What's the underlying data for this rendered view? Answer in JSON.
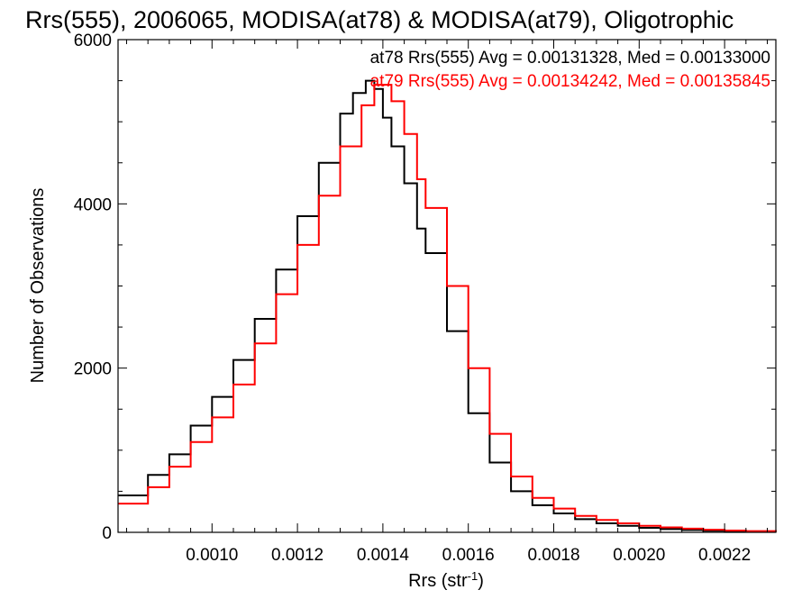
{
  "chart_data": {
    "type": "step",
    "title": "Rrs(555), 2006065, MODISA(at78) & MODISA(at79), Oligotrophic",
    "xlabel": "Rrs (str",
    "xlabel_sup": "-1",
    "xlabel_end": ")",
    "ylabel": "Number of Observations",
    "xlim": [
      0.00078,
      0.00232
    ],
    "ylim": [
      0,
      6000
    ],
    "xticks": [
      "0.0010",
      "0.0012",
      "0.0014",
      "0.0016",
      "0.0018",
      "0.0020",
      "0.0022"
    ],
    "xtick_values": [
      0.001,
      0.0012,
      0.0014,
      0.0016,
      0.0018,
      0.002,
      0.0022
    ],
    "yticks": [
      "0",
      "2000",
      "4000",
      "6000"
    ],
    "ytick_values": [
      0,
      2000,
      4000,
      6000
    ],
    "grid": false,
    "stats": [
      {
        "text": "at78 Rrs(555) Avg = 0.00131328, Med = 0.00133000",
        "color": "#000000"
      },
      {
        "text": "at79 Rrs(555) Avg = 0.00134242, Med = 0.00135845",
        "color": "#ff0000"
      }
    ],
    "series": [
      {
        "color": "#000000",
        "x": [
          0.00078,
          0.00085,
          0.0009,
          0.00095,
          0.001,
          0.00105,
          0.0011,
          0.00115,
          0.0012,
          0.00125,
          0.0013,
          0.00133,
          0.00136,
          0.00138,
          0.0014,
          0.00142,
          0.00145,
          0.00148,
          0.0015,
          0.00155,
          0.0016,
          0.00165,
          0.0017,
          0.00175,
          0.0018,
          0.00185,
          0.0019,
          0.00195,
          0.002,
          0.00205,
          0.0021,
          0.00215,
          0.0022,
          0.00225,
          0.00232
        ],
        "y": [
          450,
          700,
          950,
          1300,
          1650,
          2100,
          2600,
          3200,
          3850,
          4500,
          5100,
          5350,
          5500,
          5400,
          5050,
          4700,
          4250,
          3700,
          3400,
          2450,
          1450,
          850,
          500,
          330,
          230,
          160,
          110,
          80,
          55,
          40,
          28,
          20,
          12,
          8,
          5
        ]
      },
      {
        "color": "#ff0000",
        "x": [
          0.00078,
          0.00085,
          0.0009,
          0.00095,
          0.001,
          0.00105,
          0.0011,
          0.00115,
          0.0012,
          0.00125,
          0.0013,
          0.00135,
          0.00138,
          0.0014,
          0.00142,
          0.00145,
          0.00148,
          0.0015,
          0.00155,
          0.0016,
          0.00165,
          0.0017,
          0.00175,
          0.0018,
          0.00185,
          0.0019,
          0.00195,
          0.002,
          0.00205,
          0.0021,
          0.00215,
          0.0022,
          0.00225,
          0.00232
        ],
        "y": [
          350,
          550,
          800,
          1100,
          1400,
          1800,
          2300,
          2900,
          3500,
          4100,
          4700,
          5200,
          5450,
          5450,
          5250,
          4850,
          4300,
          3950,
          3000,
          2000,
          1200,
          680,
          420,
          290,
          200,
          150,
          110,
          80,
          60,
          45,
          32,
          22,
          15,
          10
        ]
      }
    ]
  }
}
